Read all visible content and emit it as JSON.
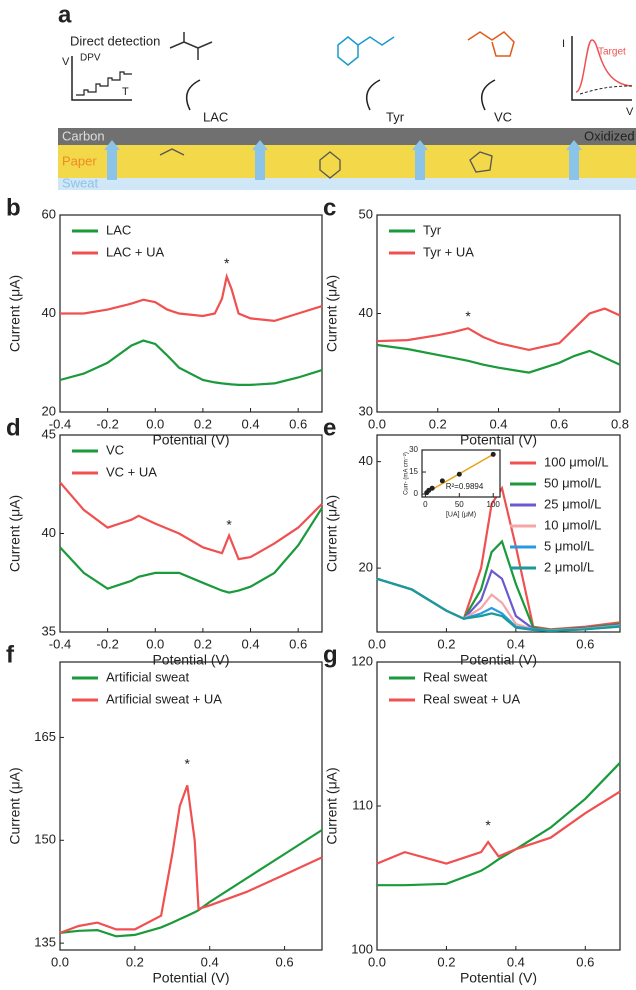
{
  "schematic": {
    "label": "a",
    "subtitle": "Direct detection",
    "dpv_label": "DPV",
    "dpv_y": "V",
    "dpv_x": "T",
    "analytes": [
      "LAC",
      "Tyr",
      "VC"
    ],
    "layers": [
      "Carbon",
      "Paper",
      "Sweat"
    ],
    "oxidized": "Oxidized",
    "target_y": "I",
    "target_label": "Target",
    "target_x": "V"
  },
  "chart_data": [
    {
      "type": "line",
      "label": "b",
      "xlabel": "Potential (V)",
      "ylabel": "Current (μA)",
      "legend": "upper left",
      "xlim": [
        -0.4,
        0.7
      ],
      "ylim": [
        20,
        60
      ],
      "xticks": [
        -0.4,
        -0.2,
        {
          "value": 0,
          "label": "0.0"
        },
        0.2,
        0.4,
        0.6
      ],
      "yticks": [
        20,
        40,
        60
      ],
      "x": [
        -0.4,
        -0.3,
        -0.2,
        -0.1,
        -0.05,
        0,
        0.05,
        0.1,
        0.2,
        0.25,
        0.28,
        0.3,
        0.32,
        0.35,
        0.4,
        0.5,
        0.6,
        0.7
      ],
      "series": [
        {
          "name": "LAC",
          "color": "#1a9a3a",
          "values": [
            26.5,
            27.8,
            30,
            33.5,
            34.5,
            33.8,
            31.5,
            29,
            26.5,
            26,
            25.8,
            25.7,
            25.6,
            25.5,
            25.5,
            25.8,
            27,
            28.5
          ]
        },
        {
          "name": "LAC + UA",
          "color": "#f05050",
          "values": [
            40,
            40,
            40.8,
            42,
            42.8,
            42.3,
            40.8,
            40,
            39.5,
            40,
            43,
            47.5,
            45,
            40,
            39,
            38.5,
            40,
            41.5
          ]
        }
      ],
      "annotations": [
        {
          "text": "*",
          "x": 0.3,
          "y": 50
        }
      ]
    },
    {
      "type": "line",
      "label": "c",
      "xlabel": "Potential (V)",
      "ylabel": "Current (μA)",
      "legend": "upper left",
      "xlim": [
        0,
        0.8
      ],
      "ylim": [
        30,
        50
      ],
      "xticks": [
        {
          "value": 0,
          "label": "0.0"
        },
        0.2,
        0.4,
        0.6,
        0.8
      ],
      "yticks": [
        30,
        40,
        50
      ],
      "x": [
        0,
        0.1,
        0.2,
        0.25,
        0.3,
        0.35,
        0.4,
        0.5,
        0.6,
        0.65,
        0.7,
        0.75,
        0.8
      ],
      "series": [
        {
          "name": "Tyr",
          "color": "#1a9a3a",
          "values": [
            36.8,
            36.4,
            35.8,
            35.5,
            35.2,
            34.8,
            34.5,
            34,
            35,
            35.7,
            36.2,
            35.5,
            34.8
          ]
        },
        {
          "name": "Tyr + UA",
          "color": "#f05050",
          "values": [
            37.2,
            37.3,
            37.8,
            38.1,
            38.5,
            37.6,
            37,
            36.3,
            37,
            38.5,
            40,
            40.5,
            39.8
          ]
        }
      ],
      "annotations": [
        {
          "text": "*",
          "x": 0.3,
          "y": 39.6
        }
      ]
    },
    {
      "type": "line",
      "label": "d",
      "xlabel": "Potential (V)",
      "ylabel": "Current (μA)",
      "legend": "upper left",
      "xlim": [
        -0.4,
        0.7
      ],
      "ylim": [
        35,
        45
      ],
      "xticks": [
        -0.4,
        -0.2,
        {
          "value": 0,
          "label": "0.0"
        },
        0.2,
        0.4,
        0.6
      ],
      "yticks": [
        35,
        40,
        45
      ],
      "x": [
        -0.4,
        -0.3,
        -0.2,
        -0.1,
        -0.07,
        0,
        0.1,
        0.2,
        0.28,
        0.31,
        0.35,
        0.4,
        0.5,
        0.6,
        0.7
      ],
      "series": [
        {
          "name": "VC",
          "color": "#1a9a3a",
          "values": [
            39.3,
            38,
            37.2,
            37.6,
            37.8,
            38,
            38,
            37.5,
            37.1,
            37,
            37.1,
            37.3,
            38,
            39.4,
            41.3
          ]
        },
        {
          "name": "VC + UA",
          "color": "#f05050",
          "values": [
            42.6,
            41.2,
            40.3,
            40.7,
            40.9,
            40.5,
            40,
            39.3,
            39,
            39.9,
            38.7,
            38.8,
            39.5,
            40.3,
            41.5
          ]
        }
      ],
      "annotations": [
        {
          "text": "*",
          "x": 0.31,
          "y": 40.4
        }
      ]
    },
    {
      "type": "line",
      "label": "e",
      "xlabel": "Potential (V)",
      "ylabel": "Current (μA)",
      "legend": "right",
      "xlim": [
        0,
        0.7
      ],
      "ylim": [
        8,
        45
      ],
      "xticks": [
        {
          "value": 0,
          "label": "0.0"
        },
        0.2,
        0.4,
        0.6
      ],
      "yticks": [
        20,
        40
      ],
      "x": [
        0,
        0.1,
        0.2,
        0.25,
        0.3,
        0.33,
        0.36,
        0.4,
        0.45,
        0.5,
        0.6,
        0.7
      ],
      "series": [
        {
          "name": "100 μmol/L",
          "color": "#f05050",
          "values": [
            18,
            16,
            12,
            10.5,
            20,
            32,
            35,
            24,
            9,
            8.5,
            9,
            9.8
          ]
        },
        {
          "name": "50 μmol/L",
          "color": "#1a9a3a",
          "values": [
            18,
            16,
            12,
            10.5,
            16,
            23,
            25,
            17,
            8.8,
            8.4,
            8.8,
            9.5
          ]
        },
        {
          "name": "25 μmol/L",
          "color": "#6a5acd",
          "values": [
            18,
            16,
            12,
            10.5,
            14,
            19.5,
            18,
            11,
            8.6,
            8.3,
            8.7,
            9.3
          ]
        },
        {
          "name": "10 μmol/L",
          "color": "#f4a6a6",
          "values": [
            18,
            16,
            12,
            10.5,
            12.5,
            15,
            13.5,
            9.5,
            8.5,
            8.3,
            8.6,
            9.2
          ]
        },
        {
          "name": "5 μmol/L",
          "color": "#2a9ae0",
          "values": [
            18,
            16,
            12,
            10.5,
            11.5,
            12.5,
            11.5,
            9,
            8.5,
            8.2,
            8.5,
            9.1
          ]
        },
        {
          "name": "2 μmol/L",
          "color": "#1a9a9a",
          "values": [
            18,
            16,
            12,
            10.5,
            11,
            11.5,
            11,
            8.8,
            8.4,
            8.2,
            8.5,
            9
          ]
        }
      ]
    },
    {
      "type": "scatter",
      "xlabel": "[UA] (μM)",
      "ylabel": "Curr- (mA cm⁻²)",
      "xlim": [
        -5,
        110
      ],
      "ylim": [
        -2,
        30
      ],
      "xticks": [
        0,
        50,
        100
      ],
      "yticks": [
        0,
        15,
        30
      ],
      "x": [
        2,
        5,
        10,
        25,
        50,
        100
      ],
      "values": [
        1,
        2.5,
        4,
        9,
        13.5,
        27
      ],
      "color": "#222222",
      "fit_line": {
        "color": "#e8a317",
        "x": [
          0,
          100
        ],
        "y": [
          0.5,
          27
        ]
      },
      "annotations": [
        {
          "text": "R²=0.9894",
          "x": 30,
          "y": 5
        }
      ]
    },
    {
      "type": "line",
      "label": "f",
      "xlabel": "Potential (V)",
      "ylabel": "Current (μA)",
      "legend": "upper left",
      "xlim": [
        0,
        0.7
      ],
      "ylim": [
        134,
        176
      ],
      "xticks": [
        {
          "value": 0,
          "label": "0.0"
        },
        0.2,
        0.4,
        0.6
      ],
      "yticks": [
        135,
        150,
        165
      ],
      "x": [
        0,
        0.05,
        0.1,
        0.15,
        0.2,
        0.27,
        0.3,
        0.32,
        0.34,
        0.36,
        0.37,
        0.4,
        0.5,
        0.6,
        0.7
      ],
      "series": [
        {
          "name": "Artificial sweat",
          "color": "#1a9a3a",
          "values": [
            136.5,
            136.8,
            136.9,
            136,
            136.2,
            137.3,
            138,
            138.5,
            139,
            139.5,
            139.8,
            141,
            144.5,
            148,
            151.5
          ]
        },
        {
          "name": "Artificial sweat + UA",
          "color": "#f05050",
          "values": [
            136.5,
            137.5,
            138,
            137,
            137,
            139,
            148,
            155,
            158,
            150,
            140,
            140.5,
            142.5,
            145,
            147.5
          ]
        }
      ],
      "annotations": [
        {
          "text": "*",
          "x": 0.34,
          "y": 161
        }
      ]
    },
    {
      "type": "line",
      "label": "g",
      "xlabel": "Potential (V)",
      "ylabel": "Current (μA)",
      "legend": "upper left",
      "xlim": [
        0,
        0.7
      ],
      "ylim": [
        100,
        120
      ],
      "xticks": [
        {
          "value": 0,
          "label": "0.0"
        },
        0.2,
        0.4,
        0.6
      ],
      "yticks": [
        100,
        110,
        120
      ],
      "x": [
        0,
        0.08,
        0.2,
        0.3,
        0.32,
        0.35,
        0.4,
        0.5,
        0.6,
        0.7
      ],
      "series": [
        {
          "name": "Real sweat",
          "color": "#1a9a3a",
          "values": [
            104.5,
            104.5,
            104.6,
            105.5,
            105.8,
            106.3,
            107,
            108.5,
            110.5,
            113
          ]
        },
        {
          "name": "Real sweat + UA",
          "color": "#f05050",
          "values": [
            106,
            106.8,
            106,
            106.8,
            107.5,
            106.5,
            107,
            107.8,
            109.5,
            111
          ]
        }
      ],
      "annotations": [
        {
          "text": "*",
          "x": 0.32,
          "y": 108.6
        }
      ]
    }
  ]
}
